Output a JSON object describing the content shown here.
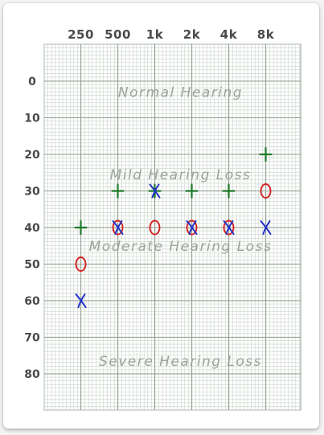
{
  "chart_data": {
    "type": "scatter",
    "title": "",
    "xlabel": "",
    "ylabel": "",
    "x_ticks": [
      "250",
      "500",
      "1k",
      "2k",
      "4k",
      "8k"
    ],
    "y_ticks": [
      "0",
      "10",
      "20",
      "30",
      "40",
      "50",
      "60",
      "70",
      "80"
    ],
    "y_inverted": true,
    "grid": true,
    "zones": [
      {
        "label": "Normal Hearing",
        "level": 3
      },
      {
        "label": "Mild Hearing Loss",
        "level": 25.5
      },
      {
        "label": "Moderate Hearing Loss",
        "level": 45
      },
      {
        "label": "Severe Hearing Loss",
        "level": 76.5
      }
    ],
    "series": [
      {
        "symbol": "+",
        "color": "#1d7a2a",
        "points": [
          {
            "x": "250",
            "y": 40
          },
          {
            "x": "500",
            "y": 30
          },
          {
            "x": "1k",
            "y": 30
          },
          {
            "x": "2k",
            "y": 30
          },
          {
            "x": "4k",
            "y": 30
          },
          {
            "x": "8k",
            "y": 20
          }
        ]
      },
      {
        "symbol": "O",
        "color": "#d42020",
        "points": [
          {
            "x": "250",
            "y": 50
          },
          {
            "x": "500",
            "y": 40
          },
          {
            "x": "1k",
            "y": 40
          },
          {
            "x": "2k",
            "y": 40
          },
          {
            "x": "4k",
            "y": 40
          },
          {
            "x": "8k",
            "y": 30
          }
        ]
      },
      {
        "symbol": "X",
        "color": "#1f2fc8",
        "points": [
          {
            "x": "250",
            "y": 60
          },
          {
            "x": "500",
            "y": 40
          },
          {
            "x": "1k",
            "y": 30
          },
          {
            "x": "2k",
            "y": 40
          },
          {
            "x": "4k",
            "y": 40
          },
          {
            "x": "8k",
            "y": 40
          }
        ]
      }
    ]
  }
}
